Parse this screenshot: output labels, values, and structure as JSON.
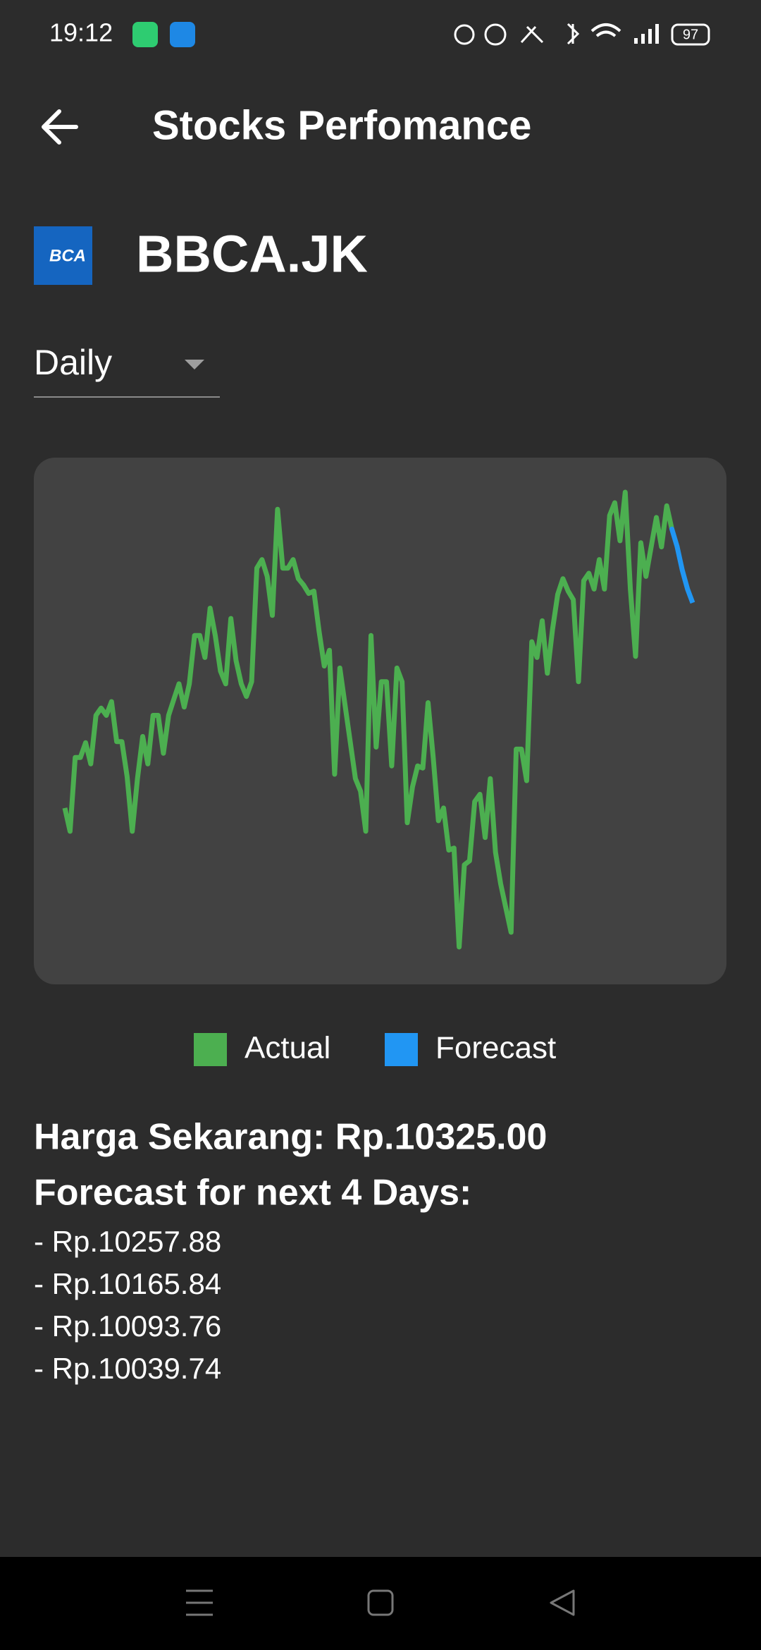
{
  "status_bar": {
    "time": "19:12",
    "battery": "97"
  },
  "header": {
    "title": "Stocks Perfomance"
  },
  "stock": {
    "logo_text": "BCA",
    "symbol": "BBCA.JK"
  },
  "dropdown": {
    "selected": "Daily"
  },
  "chart_data": {
    "type": "line",
    "series": [
      {
        "name": "Actual",
        "color": "#4caf50",
        "values": [
          9245,
          9155,
          9441,
          9441,
          9498,
          9416,
          9604,
          9632,
          9604,
          9657,
          9502,
          9502,
          9367,
          9155,
          9359,
          9522,
          9416,
          9604,
          9604,
          9457,
          9604,
          9665,
          9726,
          9636,
          9726,
          9913,
          9913,
          9828,
          10019,
          9913,
          9775,
          9726,
          9979,
          9816,
          9726,
          9677,
          9734,
          10174,
          10207,
          10142,
          9991,
          10402,
          10174,
          10174,
          10207,
          10133,
          10109,
          10076,
          10085,
          9930,
          9795,
          9856,
          9376,
          9787,
          9645,
          9502,
          9359,
          9310,
          9155,
          9913,
          9481,
          9734,
          9734,
          9408,
          9787,
          9734,
          9188,
          9327,
          9408,
          9400,
          9653,
          9441,
          9196,
          9245,
          9082,
          9090,
          8707,
          9025,
          9041,
          9270,
          9298,
          9131,
          9359,
          9074,
          8952,
          8858,
          8764,
          9473,
          9473,
          9351,
          9889,
          9828,
          9970,
          9767,
          9938,
          10072,
          10133,
          10085,
          10052,
          9734,
          10125,
          10154,
          10093,
          10207,
          10093,
          10378,
          10427,
          10280,
          10468,
          10093,
          9832,
          10272,
          10142,
          10256,
          10370,
          10256,
          10415,
          10325
        ]
      },
      {
        "name": "Forecast",
        "color": "#2196f3",
        "values": [
          10257.88,
          10165.84,
          10093.76,
          10039.74
        ]
      }
    ]
  },
  "summary": {
    "current_price": "Harga Sekarang: Rp.10325.00",
    "forecast_heading": "Forecast for next 4 Days:",
    "forecasts": [
      "- Rp.10257.88",
      "- Rp.10165.84",
      "- Rp.10093.76",
      "- Rp.10039.74"
    ]
  }
}
